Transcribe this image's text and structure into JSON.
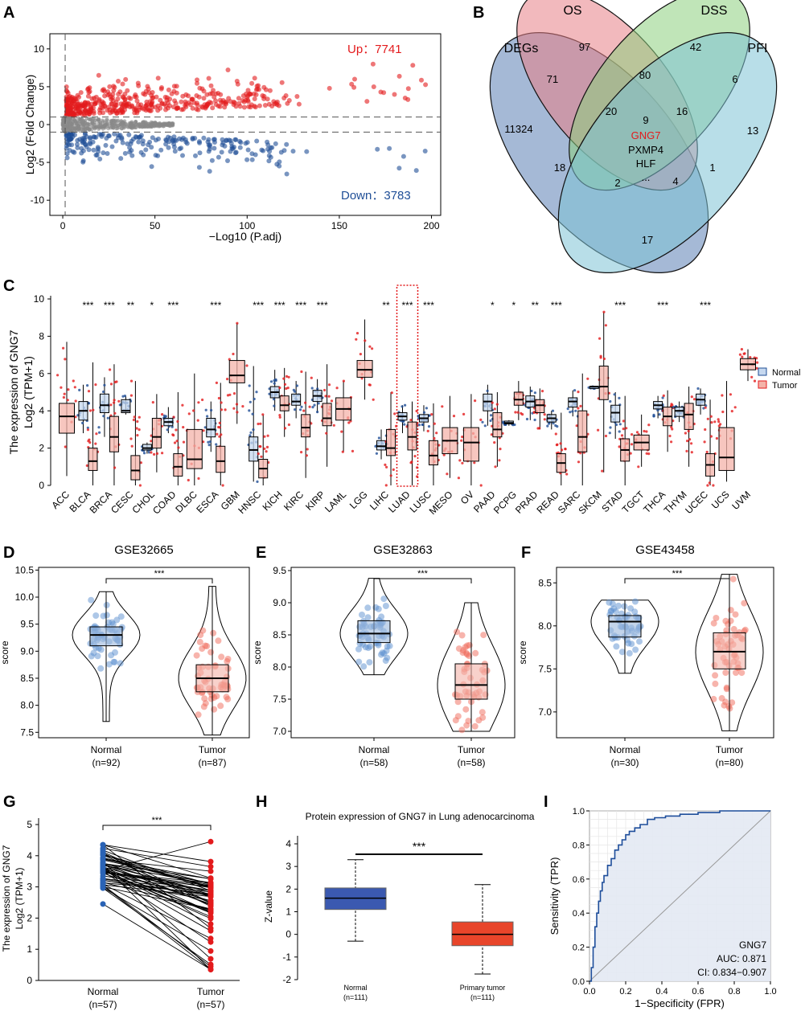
{
  "panels": {
    "A": "A",
    "B": "B",
    "C": "C",
    "D": "D",
    "E": "E",
    "F": "F",
    "G": "G",
    "H": "H",
    "I": "I"
  },
  "colors": {
    "up": "#e31a1c",
    "down": "#1f4e96",
    "grey": "#888888",
    "normal": "#5b8fd0",
    "tumor": "#ef6a5a",
    "normal_box": "#c6d8ef",
    "tumor_box": "#f4b3a9",
    "protein_normal": "#3b59b0",
    "protein_tumor": "#e8452a",
    "roc": "#1d4d9a",
    "roc_fill": "#e3e9f3"
  },
  "chart_data": [
    {
      "panel": "A",
      "type": "scatter",
      "title": "",
      "xlabel": "−Log10 (P.adj)",
      "ylabel": "Log2 (Fold Change)",
      "xticks": [
        "0",
        "50",
        "100",
        "150",
        "200"
      ],
      "yticks": [
        "-10",
        "-5",
        "0",
        "5",
        "10"
      ],
      "xlim": [
        -7,
        205
      ],
      "ylim": [
        -12,
        12
      ],
      "annotations": {
        "up": "Up：7741",
        "down": "Down：3783"
      },
      "thresholds": {
        "logfc": [
          1,
          -1
        ],
        "padj_line": 1.3
      }
    },
    {
      "panel": "B",
      "type": "venn",
      "sets": [
        "DEGs",
        "OS",
        "DSS",
        "PFI"
      ],
      "regions": [
        "97",
        "42",
        "71",
        "80",
        "6",
        "11324",
        "20",
        "16",
        "13",
        "9",
        "1",
        "18",
        "2",
        "4",
        "17"
      ],
      "center_genes": {
        "highlight": "GNG7",
        "others": [
          "PXMP4",
          "HLF",
          "..."
        ]
      }
    },
    {
      "panel": "C",
      "type": "box",
      "ylabel_line1": "The expression of GNG7",
      "ylabel_line2": "Log2 (TPM+1)",
      "yticks": [
        "0",
        "2",
        "4",
        "6",
        "8",
        "10"
      ],
      "ylim": [
        0,
        10
      ],
      "legend": [
        "Normal",
        "Tumor"
      ],
      "highlight": "LUAD",
      "categories": [
        {
          "name": "ACC",
          "sig": "",
          "normal": null,
          "tumor": {
            "q1": 2.8,
            "median": 3.7,
            "q3": 4.4,
            "min": 0.5,
            "max": 7.7
          }
        },
        {
          "name": "BLCA",
          "sig": "***",
          "normal": {
            "q1": 3.5,
            "median": 4.0,
            "q3": 4.5,
            "min": 2.8,
            "max": 5.4
          },
          "tumor": {
            "q1": 0.8,
            "median": 1.3,
            "q3": 2.0,
            "min": 0.0,
            "max": 6.6
          }
        },
        {
          "name": "BRCA",
          "sig": "***",
          "normal": {
            "q1": 3.9,
            "median": 4.3,
            "q3": 4.9,
            "min": 2.6,
            "max": 5.8
          },
          "tumor": {
            "q1": 1.8,
            "median": 2.6,
            "q3": 3.7,
            "min": 0.0,
            "max": 6.5
          }
        },
        {
          "name": "CESC",
          "sig": "**",
          "normal": {
            "q1": 3.9,
            "median": 4.0,
            "q3": 4.6,
            "min": 3.8,
            "max": 4.8
          },
          "tumor": {
            "q1": 0.3,
            "median": 0.8,
            "q3": 1.6,
            "min": 0.0,
            "max": 5.6
          }
        },
        {
          "name": "CHOL",
          "sig": "*",
          "normal": {
            "q1": 1.9,
            "median": 2.0,
            "q3": 2.2,
            "min": 1.7,
            "max": 2.3
          },
          "tumor": {
            "q1": 2.0,
            "median": 2.6,
            "q3": 3.6,
            "min": 0.7,
            "max": 4.9
          }
        },
        {
          "name": "COAD",
          "sig": "***",
          "normal": {
            "q1": 3.2,
            "median": 3.4,
            "q3": 3.6,
            "min": 2.8,
            "max": 4.2
          },
          "tumor": {
            "q1": 0.5,
            "median": 1.0,
            "q3": 1.7,
            "min": 0.0,
            "max": 5.0
          }
        },
        {
          "name": "DLBC",
          "sig": "",
          "normal": null,
          "tumor": {
            "q1": 0.9,
            "median": 1.4,
            "q3": 3.0,
            "min": 0.0,
            "max": 6.0
          }
        },
        {
          "name": "ESCA",
          "sig": "***",
          "normal": {
            "q1": 2.6,
            "median": 3.0,
            "q3": 3.6,
            "min": 1.8,
            "max": 4.5
          },
          "tumor": {
            "q1": 0.7,
            "median": 1.3,
            "q3": 2.1,
            "min": 0.0,
            "max": 5.5
          }
        },
        {
          "name": "GBM",
          "sig": "",
          "normal": null,
          "tumor": {
            "q1": 5.5,
            "median": 5.9,
            "q3": 6.7,
            "min": 3.3,
            "max": 8.7
          }
        },
        {
          "name": "HNSC",
          "sig": "***",
          "normal": {
            "q1": 1.3,
            "median": 1.9,
            "q3": 2.6,
            "min": 0.2,
            "max": 6.4
          },
          "tumor": {
            "q1": 0.4,
            "median": 0.9,
            "q3": 1.4,
            "min": 0.0,
            "max": 3.8
          }
        },
        {
          "name": "KICH",
          "sig": "***",
          "normal": {
            "q1": 4.7,
            "median": 5.0,
            "q3": 5.3,
            "min": 4.0,
            "max": 6.2
          },
          "tumor": {
            "q1": 4.0,
            "median": 4.3,
            "q3": 4.8,
            "min": 2.6,
            "max": 6.3
          }
        },
        {
          "name": "KIRC",
          "sig": "***",
          "normal": {
            "q1": 4.3,
            "median": 4.5,
            "q3": 4.9,
            "min": 3.6,
            "max": 5.6
          },
          "tumor": {
            "q1": 2.6,
            "median": 3.1,
            "q3": 3.8,
            "min": 0.4,
            "max": 6.1
          }
        },
        {
          "name": "KIRP",
          "sig": "***",
          "normal": {
            "q1": 4.5,
            "median": 4.8,
            "q3": 5.1,
            "min": 3.9,
            "max": 5.7
          },
          "tumor": {
            "q1": 3.2,
            "median": 3.6,
            "q3": 4.4,
            "min": 1.0,
            "max": 6.5
          }
        },
        {
          "name": "LAML",
          "sig": "",
          "normal": null,
          "tumor": {
            "q1": 3.5,
            "median": 4.1,
            "q3": 4.7,
            "min": 1.8,
            "max": 5.6
          }
        },
        {
          "name": "LGG",
          "sig": "",
          "normal": null,
          "tumor": {
            "q1": 5.8,
            "median": 6.2,
            "q3": 6.7,
            "min": 4.6,
            "max": 8.9
          }
        },
        {
          "name": "LIHC",
          "sig": "**",
          "normal": {
            "q1": 1.9,
            "median": 2.1,
            "q3": 2.4,
            "min": 1.4,
            "max": 3.0
          },
          "tumor": {
            "q1": 1.6,
            "median": 2.0,
            "q3": 3.0,
            "min": 0.0,
            "max": 5.0
          }
        },
        {
          "name": "LUAD",
          "sig": "***",
          "normal": {
            "q1": 3.5,
            "median": 3.7,
            "q3": 3.9,
            "min": 2.8,
            "max": 4.3
          },
          "tumor": {
            "q1": 1.9,
            "median": 2.6,
            "q3": 3.4,
            "min": 0.0,
            "max": 4.5
          }
        },
        {
          "name": "LUSC",
          "sig": "***",
          "normal": {
            "q1": 3.4,
            "median": 3.6,
            "q3": 3.8,
            "min": 2.9,
            "max": 4.3
          },
          "tumor": {
            "q1": 1.1,
            "median": 1.6,
            "q3": 2.4,
            "min": 0.0,
            "max": 4.4
          }
        },
        {
          "name": "MESO",
          "sig": "",
          "normal": null,
          "tumor": {
            "q1": 1.7,
            "median": 2.4,
            "q3": 3.1,
            "min": 0.4,
            "max": 4.8
          }
        },
        {
          "name": "OV",
          "sig": "",
          "normal": null,
          "tumor": {
            "q1": 1.3,
            "median": 2.3,
            "q3": 3.1,
            "min": 0.0,
            "max": 4.9
          }
        },
        {
          "name": "PAAD",
          "sig": "*",
          "normal": {
            "q1": 4.0,
            "median": 4.5,
            "q3": 4.9,
            "min": 3.2,
            "max": 5.4
          },
          "tumor": {
            "q1": 2.6,
            "median": 3.0,
            "q3": 3.9,
            "min": 1.0,
            "max": 5.0
          }
        },
        {
          "name": "PCPG",
          "sig": "*",
          "normal": {
            "q1": 3.3,
            "median": 3.35,
            "q3": 3.45,
            "min": 3.2,
            "max": 3.5
          },
          "tumor": {
            "q1": 4.3,
            "median": 4.6,
            "q3": 5.0,
            "min": 3.5,
            "max": 5.6
          }
        },
        {
          "name": "PRAD",
          "sig": "**",
          "normal": {
            "q1": 4.2,
            "median": 4.5,
            "q3": 4.8,
            "min": 3.5,
            "max": 5.3
          },
          "tumor": {
            "q1": 3.9,
            "median": 4.3,
            "q3": 4.6,
            "min": 3.0,
            "max": 5.2
          }
        },
        {
          "name": "READ",
          "sig": "***",
          "normal": {
            "q1": 3.4,
            "median": 3.6,
            "q3": 3.8,
            "min": 3.0,
            "max": 4.0
          },
          "tumor": {
            "q1": 0.7,
            "median": 1.2,
            "q3": 1.7,
            "min": 0.0,
            "max": 3.9
          }
        },
        {
          "name": "SARC",
          "sig": "",
          "normal": {
            "q1": 4.2,
            "median": 4.5,
            "q3": 4.7,
            "min": 3.7,
            "max": 5.1
          },
          "tumor": {
            "q1": 1.8,
            "median": 2.6,
            "q3": 4.0,
            "min": 0.0,
            "max": 6.0
          }
        },
        {
          "name": "SKCM",
          "sig": "",
          "normal": {
            "q1": 5.2,
            "median": 5.3,
            "q3": 5.3,
            "min": 5.2,
            "max": 5.3
          },
          "tumor": {
            "q1": 4.6,
            "median": 5.3,
            "q3": 6.4,
            "min": 0.7,
            "max": 9.3
          }
        },
        {
          "name": "STAD",
          "sig": "***",
          "normal": {
            "q1": 3.4,
            "median": 3.9,
            "q3": 4.3,
            "min": 2.5,
            "max": 5.0
          },
          "tumor": {
            "q1": 1.3,
            "median": 1.9,
            "q3": 2.5,
            "min": 0.0,
            "max": 4.8
          }
        },
        {
          "name": "TGCT",
          "sig": "",
          "normal": null,
          "tumor": {
            "q1": 1.9,
            "median": 2.3,
            "q3": 2.7,
            "min": 1.0,
            "max": 3.8
          }
        },
        {
          "name": "THCA",
          "sig": "***",
          "normal": {
            "q1": 4.1,
            "median": 4.3,
            "q3": 4.5,
            "min": 3.6,
            "max": 4.8
          },
          "tumor": {
            "q1": 3.2,
            "median": 3.7,
            "q3": 4.2,
            "min": 1.8,
            "max": 5.1
          }
        },
        {
          "name": "THYM",
          "sig": "",
          "normal": {
            "q1": 3.7,
            "median": 4.0,
            "q3": 4.2,
            "min": 3.4,
            "max": 4.5
          },
          "tumor": {
            "q1": 3.0,
            "median": 3.8,
            "q3": 4.4,
            "min": 1.0,
            "max": 5.3
          }
        },
        {
          "name": "UCEC",
          "sig": "***",
          "normal": {
            "q1": 4.3,
            "median": 4.6,
            "q3": 4.9,
            "min": 3.8,
            "max": 5.2
          },
          "tumor": {
            "q1": 0.5,
            "median": 1.1,
            "q3": 1.7,
            "min": 0.0,
            "max": 4.6
          }
        },
        {
          "name": "UCS",
          "sig": "",
          "normal": null,
          "tumor": {
            "q1": 0.8,
            "median": 1.5,
            "q3": 3.1,
            "min": 0.2,
            "max": 5.6
          }
        },
        {
          "name": "UVM",
          "sig": "",
          "normal": null,
          "tumor": {
            "q1": 6.2,
            "median": 6.5,
            "q3": 6.8,
            "min": 5.6,
            "max": 7.3
          }
        }
      ]
    },
    {
      "panel": "D",
      "type": "violin",
      "title": "GSE32665",
      "ylabel": "score",
      "yticks": [
        "7.5",
        "8.0",
        "8.5",
        "9.0",
        "9.5",
        "10.0",
        "10.5"
      ],
      "ylim": [
        7.4,
        10.55
      ],
      "sig": "***",
      "groups": [
        {
          "name": "Normal",
          "n": "(n=92)",
          "q1": 9.1,
          "median": 9.3,
          "q3": 9.45,
          "min": 7.7,
          "max": 10.1
        },
        {
          "name": "Tumor",
          "n": "(n=87)",
          "q1": 8.25,
          "median": 8.5,
          "q3": 8.75,
          "min": 7.45,
          "max": 10.2
        }
      ]
    },
    {
      "panel": "E",
      "type": "violin",
      "title": "GSE32863",
      "ylabel": "score",
      "yticks": [
        "7.0",
        "7.5",
        "8.0",
        "8.5",
        "9.0",
        "9.5"
      ],
      "ylim": [
        6.9,
        9.55
      ],
      "sig": "***",
      "groups": [
        {
          "name": "Normal",
          "n": "(n=58)",
          "q1": 8.38,
          "median": 8.52,
          "q3": 8.72,
          "min": 7.88,
          "max": 9.38
        },
        {
          "name": "Tumor",
          "n": "(n=58)",
          "q1": 7.5,
          "median": 7.72,
          "q3": 8.05,
          "min": 7.0,
          "max": 9.0
        }
      ]
    },
    {
      "panel": "F",
      "type": "violin",
      "title": "GSE43458",
      "ylabel": "score",
      "yticks": [
        "7.0",
        "7.5",
        "8.0",
        "8.5"
      ],
      "ylim": [
        6.7,
        8.68
      ],
      "sig": "***",
      "groups": [
        {
          "name": "Normal",
          "n": "(n=30)",
          "q1": 7.87,
          "median": 8.05,
          "q3": 8.12,
          "min": 7.45,
          "max": 8.3
        },
        {
          "name": "Tumor",
          "n": "(n=80)",
          "q1": 7.5,
          "median": 7.7,
          "q3": 7.92,
          "min": 6.78,
          "max": 8.6
        }
      ]
    },
    {
      "panel": "G",
      "type": "paired",
      "ylabel_line1": "The expression of GNG7",
      "ylabel_line2": "Log2 (TPM+1)",
      "yticks": [
        "0",
        "1",
        "2",
        "3",
        "4",
        "5"
      ],
      "ylim": [
        0,
        5
      ],
      "sig": "***",
      "groups": [
        {
          "name": "Normal",
          "n": "(n=57)"
        },
        {
          "name": "Tumor",
          "n": "(n=57)"
        }
      ],
      "normal_range": [
        2.45,
        4.35
      ],
      "tumor_range": [
        0.35,
        4.45
      ]
    },
    {
      "panel": "H",
      "type": "box",
      "title": "Protein expression of GNG7 in Lung adenocarcinoma",
      "ylabel": "Z-value",
      "yticks": [
        "-2",
        "-1",
        "0",
        "1",
        "2",
        "3",
        "4"
      ],
      "ylim": [
        -2,
        4
      ],
      "sig": "***",
      "groups": [
        {
          "name": "Normal",
          "n": "(n=111)",
          "q1": 1.1,
          "median": 1.6,
          "q3": 2.05,
          "min": -0.3,
          "max": 3.3
        },
        {
          "name": "Primary tumor",
          "n": "(n=111)",
          "q1": -0.5,
          "median": 0.0,
          "q3": 0.55,
          "min": -1.75,
          "max": 2.2
        }
      ]
    },
    {
      "panel": "I",
      "type": "line",
      "xlabel": "1−Specificity (FPR)",
      "ylabel": "Sensitivity (TPR)",
      "xticks": [
        "0.0",
        "0.2",
        "0.4",
        "0.6",
        "0.8",
        "1.0"
      ],
      "yticks": [
        "0.0",
        "0.2",
        "0.4",
        "0.6",
        "0.8",
        "1.0"
      ],
      "xlim": [
        0,
        1
      ],
      "ylim": [
        0,
        1
      ],
      "legend": {
        "gene": "GNG7",
        "auc": "AUC: 0.871",
        "ci": "CI: 0.834−0.907"
      },
      "fpr": [
        0,
        0.01,
        0.02,
        0.03,
        0.04,
        0.05,
        0.06,
        0.07,
        0.08,
        0.1,
        0.12,
        0.14,
        0.16,
        0.18,
        0.2,
        0.22,
        0.25,
        0.28,
        0.32,
        0.36,
        0.42,
        0.5,
        0.6,
        0.72,
        0.85,
        1.0
      ],
      "tpr": [
        0,
        0.08,
        0.2,
        0.32,
        0.4,
        0.47,
        0.53,
        0.58,
        0.62,
        0.68,
        0.72,
        0.77,
        0.8,
        0.83,
        0.86,
        0.88,
        0.9,
        0.92,
        0.95,
        0.96,
        0.97,
        0.98,
        0.99,
        1.0,
        1.0,
        1.0
      ]
    }
  ]
}
